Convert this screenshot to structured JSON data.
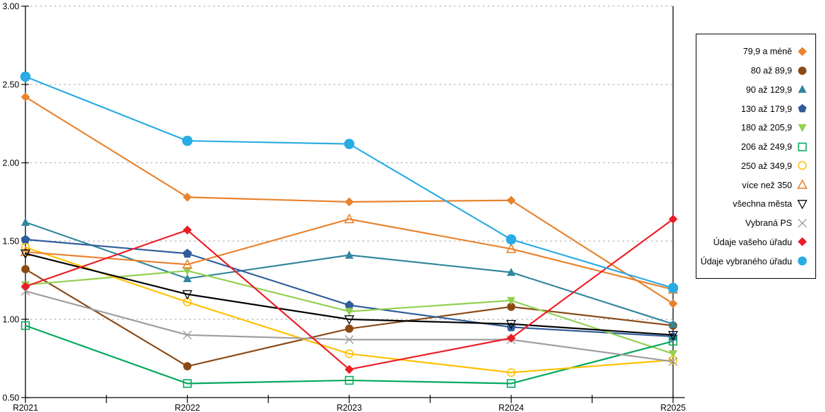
{
  "chart_data": {
    "type": "line",
    "title": "",
    "xlabel": "",
    "ylabel": "",
    "x_categories": [
      "R2021",
      "R2022",
      "R2023",
      "R2024",
      "R2025"
    ],
    "ylim": [
      0.5,
      3.0
    ],
    "y_tick_labels": [
      "0.50",
      "1.00",
      "1.50",
      "2.00",
      "2.50",
      "3.00"
    ],
    "y_tick_values": [
      0.5,
      1.0,
      1.5,
      2.0,
      2.5,
      3.0
    ],
    "grid": "horizontal-dashed",
    "legend_position": "right",
    "series": [
      {
        "name": "79,9 a méně",
        "color": "#E8822D",
        "marker": "diamond",
        "filled": true,
        "marker_size": 6.5,
        "values": [
          2.42,
          1.78,
          1.75,
          1.76,
          1.1
        ]
      },
      {
        "name": "80 až 89,9",
        "color": "#8B4A15",
        "marker": "circle",
        "filled": true,
        "marker_size": 6,
        "values": [
          1.32,
          0.7,
          0.94,
          1.08,
          0.96
        ]
      },
      {
        "name": "90 až 129,9",
        "color": "#31859C",
        "marker": "triangle-up",
        "filled": true,
        "marker_size": 6.5,
        "values": [
          1.62,
          1.26,
          1.41,
          1.3,
          0.97
        ]
      },
      {
        "name": "130 až 179,9",
        "color": "#2F5D9B",
        "marker": "pentagon",
        "filled": true,
        "marker_size": 7,
        "values": [
          1.51,
          1.42,
          1.09,
          0.95,
          0.89
        ]
      },
      {
        "name": "180 až 205,9",
        "color": "#92D050",
        "marker": "triangle-down",
        "filled": true,
        "marker_size": 6.5,
        "values": [
          1.22,
          1.31,
          1.05,
          1.12,
          0.78
        ]
      },
      {
        "name": "206 až 249,9",
        "color": "#00A85B",
        "marker": "square",
        "filled": false,
        "marker_size": 5.5,
        "values": [
          0.96,
          0.59,
          0.61,
          0.59,
          0.86
        ]
      },
      {
        "name": "250 až 349,9",
        "color": "#FFC000",
        "marker": "circle",
        "filled": false,
        "marker_size": 5.5,
        "values": [
          1.46,
          1.11,
          0.78,
          0.66,
          0.74
        ]
      },
      {
        "name": "více než 350",
        "color": "#E8822D",
        "marker": "triangle-up",
        "filled": false,
        "marker_size": 6.5,
        "values": [
          1.43,
          1.35,
          1.64,
          1.45,
          1.19
        ]
      },
      {
        "name": "všechna města",
        "color": "#000000",
        "marker": "triangle-down",
        "filled": false,
        "marker_size": 6.5,
        "values": [
          1.42,
          1.16,
          1.0,
          0.97,
          0.9
        ]
      },
      {
        "name": "Vybraná PS",
        "color": "#9D9D9D",
        "marker": "x",
        "filled": false,
        "marker_size": 6,
        "values": [
          1.18,
          0.9,
          0.87,
          0.87,
          0.73
        ]
      },
      {
        "name": "Údaje vašeho úřadu",
        "color": "#EC1B24",
        "marker": "diamond",
        "filled": true,
        "marker_size": 6.5,
        "values": [
          1.21,
          1.57,
          0.68,
          0.88,
          1.64
        ]
      },
      {
        "name": "Údaje vybraného úřadu",
        "color": "#29ABE3",
        "marker": "circle",
        "filled": true,
        "marker_size": 7.5,
        "values": [
          2.55,
          2.14,
          2.12,
          1.51,
          1.2
        ]
      }
    ]
  }
}
